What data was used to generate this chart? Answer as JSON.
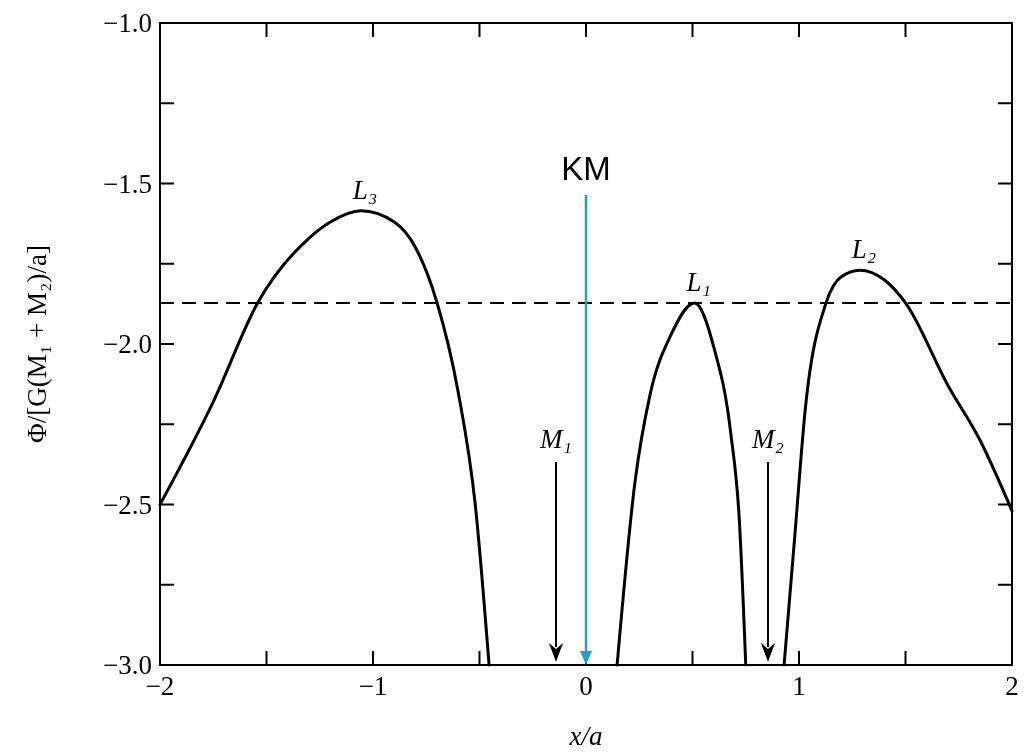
{
  "chart_data": {
    "type": "line",
    "xlabel": "x/a",
    "ylabel": "Φ/[G(M₁ + M₂)/a]",
    "xlim": [
      -2,
      2
    ],
    "ylim": [
      -3,
      -1
    ],
    "xticks": [
      -2,
      {
        "value": -1.5,
        "label": null
      },
      -1,
      {
        "value": -0.5,
        "label": null
      },
      0,
      {
        "value": 0.5,
        "label": null
      },
      1,
      {
        "value": 1.5,
        "label": null
      },
      2
    ],
    "yticks": [
      {
        "value": -3,
        "label": "−3.0"
      },
      {
        "value": -2.75,
        "label": null
      },
      {
        "value": -2.5,
        "label": "−2.5"
      },
      {
        "value": -2.25,
        "label": null
      },
      {
        "value": -2,
        "label": "−2.0"
      },
      {
        "value": -1.75,
        "label": null
      },
      {
        "value": -1.5,
        "label": "−1.5"
      },
      {
        "value": -1.25,
        "label": null
      },
      {
        "value": -1,
        "label": "−1.0"
      }
    ],
    "grid": false,
    "marker": "none",
    "line_style": "solid",
    "series": [
      {
        "color": "#000000",
        "x": [
          -2,
          -1.75,
          -1.54,
          -1.3,
          -1.2,
          -1.056,
          -0.9,
          -0.8,
          -0.7,
          -0.6,
          -0.52,
          -0.455,
          null,
          0.146,
          0.23,
          0.3,
          0.4,
          0.51,
          0.6,
          0.68,
          0.72,
          0.75,
          null,
          0.93,
          0.98,
          1.03,
          1.127,
          1.2,
          1.286,
          1.4,
          1.5,
          1.7,
          1.85,
          2
        ],
        "values": [
          -2.5,
          -2.18,
          -1.87,
          -1.67,
          -1.62,
          -1.585,
          -1.62,
          -1.7,
          -1.87,
          -2.15,
          -2.5,
          -3.0,
          null,
          -3.0,
          -2.43,
          -2.16,
          -1.97,
          -1.872,
          -2.01,
          -2.28,
          -2.55,
          -3.0,
          null,
          -3.0,
          -2.6,
          -2.2,
          -1.872,
          -1.79,
          -1.77,
          -1.8,
          -1.872,
          -2.13,
          -2.3,
          -2.52
        ]
      }
    ],
    "ref_lines": [
      {
        "axis": "y",
        "value": -1.872,
        "line_style": "dashed",
        "color": "#000000"
      },
      {
        "axis": "x",
        "value": 0,
        "label": "KM",
        "color": "#2a9dc4"
      }
    ],
    "annotations": [
      {
        "text": "L₃",
        "x": -1.056,
        "y": -1.585
      },
      {
        "text": "L₁",
        "x": 0.51,
        "y": -1.872
      },
      {
        "text": "L₂",
        "x": 1.286,
        "y": -1.77
      },
      "M₁",
      "M₂"
    ]
  }
}
